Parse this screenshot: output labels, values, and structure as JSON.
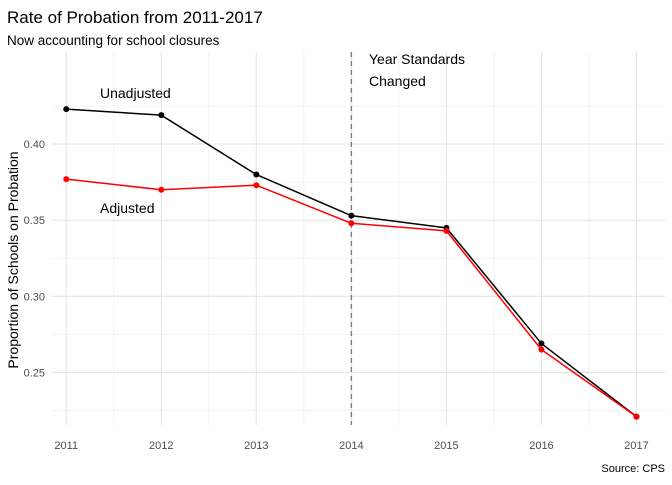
{
  "chart_data": {
    "type": "line",
    "title": "Rate of Probation from 2011-2017",
    "subtitle": "Now accounting for school closures",
    "xlabel": "",
    "ylabel": "Proportion of Schools on Probation",
    "caption": "Source: CPS",
    "x": [
      2011,
      2012,
      2013,
      2014,
      2015,
      2016,
      2017
    ],
    "xlim": [
      2010.85,
      2017.3
    ],
    "ylim": [
      0.2155,
      0.4605
    ],
    "y_ticks": [
      0.25,
      0.3,
      0.35,
      0.4
    ],
    "y_tick_labels": [
      "0.25",
      "0.30",
      "0.35",
      "0.40"
    ],
    "x_tick_labels": [
      "2011",
      "2012",
      "2013",
      "2014",
      "2015",
      "2016",
      "2017"
    ],
    "grid": true,
    "series": [
      {
        "name": "Unadjusted",
        "color": "#000000",
        "values": [
          0.423,
          0.419,
          0.38,
          0.353,
          0.345,
          0.269,
          0.221
        ]
      },
      {
        "name": "Adjusted",
        "color": "#ff0000",
        "values": [
          0.377,
          0.37,
          0.373,
          0.348,
          0.343,
          0.265,
          0.221
        ]
      }
    ],
    "vline": {
      "x": 2014,
      "style": "dashed",
      "color": "#7f7f7f"
    },
    "annotations": [
      {
        "text_line1": "Year Standards",
        "text_line2": "Changed"
      },
      {
        "text": "Unadjusted"
      },
      {
        "text": "Adjusted"
      }
    ]
  }
}
